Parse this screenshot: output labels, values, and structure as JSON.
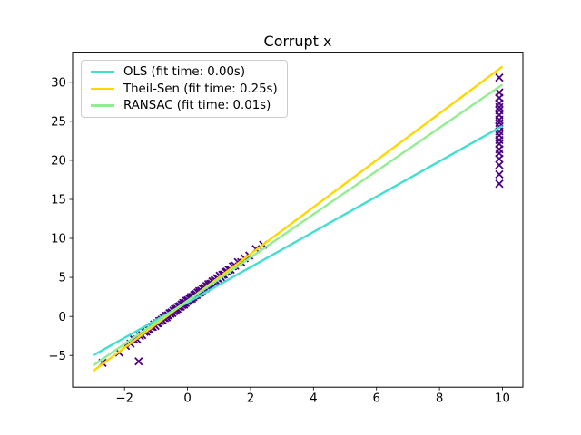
{
  "figure": {
    "background": "#ffffff",
    "spine_color": "#000000",
    "tick_color": "#000000",
    "text_color": "#000000"
  },
  "chart_data": {
    "type": "scatter",
    "title": "Corrupt x",
    "xlabel": "",
    "ylabel": "",
    "xlim": [
      -3.65,
      10.65
    ],
    "ylim": [
      -9.06,
      33.85
    ],
    "xticks": [
      -2,
      0,
      2,
      4,
      6,
      8,
      10
    ],
    "yticks": [
      -5,
      0,
      5,
      10,
      15,
      20,
      25,
      30
    ],
    "grid": false,
    "legend_position": "upper-left",
    "scatter": {
      "name": "samples",
      "marker": "x",
      "color": "#4B0082",
      "inliers": [
        [
          -2.7,
          -5.95
        ],
        [
          -2.17,
          -4.63
        ],
        [
          -1.96,
          -3.78
        ],
        [
          -1.81,
          -3.48
        ],
        [
          -1.7,
          -2.95
        ],
        [
          -1.6,
          -2.95
        ],
        [
          -1.55,
          -5.75
        ],
        [
          -1.51,
          -2.51
        ],
        [
          -1.44,
          -2.4
        ],
        [
          -1.37,
          -1.99
        ],
        [
          -1.31,
          -1.95
        ],
        [
          -1.25,
          -1.7
        ],
        [
          -1.2,
          -1.72
        ],
        [
          -1.15,
          -1.35
        ],
        [
          -1.1,
          -1.35
        ],
        [
          -1.06,
          -1.03
        ],
        [
          -1.02,
          -1.21
        ],
        [
          -0.97,
          -0.89
        ],
        [
          -0.93,
          -0.87
        ],
        [
          -0.9,
          -0.58
        ],
        [
          -0.86,
          -0.6
        ],
        [
          -0.82,
          -0.41
        ],
        [
          -0.79,
          -0.49
        ],
        [
          -0.76,
          -0.18
        ],
        [
          -0.72,
          -0.21
        ],
        [
          -0.69,
          0.08
        ],
        [
          -0.66,
          -0.13
        ],
        [
          -0.63,
          0.13
        ],
        [
          -0.6,
          0.12
        ],
        [
          -0.57,
          0.41
        ],
        [
          -0.54,
          0.36
        ],
        [
          -0.51,
          0.52
        ],
        [
          -0.48,
          0.44
        ],
        [
          -0.45,
          0.75
        ],
        [
          -0.43,
          0.66
        ],
        [
          -0.4,
          0.95
        ],
        [
          -0.37,
          0.74
        ],
        [
          -0.35,
          0.97
        ],
        [
          -0.32,
          0.96
        ],
        [
          -0.29,
          1.25
        ],
        [
          -0.27,
          1.17
        ],
        [
          -0.24,
          1.33
        ],
        [
          -0.21,
          1.25
        ],
        [
          -0.19,
          1.53
        ],
        [
          -0.16,
          1.47
        ],
        [
          -0.14,
          1.73
        ],
        [
          -0.11,
          1.52
        ],
        [
          -0.09,
          1.75
        ],
        [
          -0.06,
          1.74
        ],
        [
          -0.04,
          2.0
        ],
        [
          -0.01,
          1.95
        ],
        [
          0.01,
          2.08
        ],
        [
          0.04,
          2.0
        ],
        [
          0.06,
          2.28
        ],
        [
          0.09,
          2.22
        ],
        [
          0.11,
          2.48
        ],
        [
          0.14,
          2.27
        ],
        [
          0.16,
          2.5
        ],
        [
          0.19,
          2.49
        ],
        [
          0.21,
          2.75
        ],
        [
          0.24,
          2.7
        ],
        [
          0.27,
          2.86
        ],
        [
          0.29,
          2.75
        ],
        [
          0.32,
          3.06
        ],
        [
          0.35,
          3.0
        ],
        [
          0.37,
          3.26
        ],
        [
          0.4,
          3.05
        ],
        [
          0.43,
          3.31
        ],
        [
          0.45,
          3.27
        ],
        [
          0.48,
          3.56
        ],
        [
          0.51,
          3.51
        ],
        [
          0.54,
          3.67
        ],
        [
          0.57,
          3.59
        ],
        [
          0.6,
          3.9
        ],
        [
          0.63,
          3.84
        ],
        [
          0.66,
          4.13
        ],
        [
          0.69,
          3.92
        ],
        [
          0.72,
          4.18
        ],
        [
          0.76,
          4.2
        ],
        [
          0.79,
          4.49
        ],
        [
          0.82,
          4.44
        ],
        [
          0.86,
          4.63
        ],
        [
          0.9,
          4.58
        ],
        [
          0.93,
          4.89
        ],
        [
          0.97,
          4.86
        ],
        [
          1.02,
          5.21
        ],
        [
          1.06,
          5.03
        ],
        [
          1.1,
          5.32
        ],
        [
          1.15,
          5.37
        ],
        [
          1.2,
          5.72
        ],
        [
          1.25,
          5.73
        ],
        [
          1.31,
          5.98
        ],
        [
          1.37,
          5.99
        ],
        [
          1.44,
          6.42
        ],
        [
          1.51,
          6.48
        ],
        [
          1.6,
          6.95
        ],
        [
          1.7,
          6.95
        ],
        [
          1.81,
          7.45
        ],
        [
          1.96,
          7.8
        ],
        [
          2.17,
          8.63
        ],
        [
          2.4,
          9.18
        ]
      ],
      "outliers": [
        [
          9.9,
          30.6
        ],
        [
          9.9,
          28.7
        ],
        [
          9.9,
          28.0
        ],
        [
          9.9,
          27.3
        ],
        [
          9.9,
          26.8
        ],
        [
          9.9,
          26.4
        ],
        [
          9.9,
          25.8
        ],
        [
          9.9,
          25.2
        ],
        [
          9.9,
          24.8
        ],
        [
          9.9,
          24.3
        ],
        [
          9.9,
          23.7
        ],
        [
          9.9,
          23.2
        ],
        [
          9.9,
          22.6
        ],
        [
          9.9,
          22.1
        ],
        [
          9.9,
          21.4
        ],
        [
          9.9,
          20.9
        ],
        [
          9.9,
          20.2
        ],
        [
          9.9,
          19.4
        ],
        [
          9.9,
          18.2
        ],
        [
          9.9,
          17.0
        ]
      ]
    },
    "series": [
      {
        "name": "ols",
        "label": "OLS (fit time: 0.00s)",
        "color": "#40E0D0",
        "x": [
          -3,
          10
        ],
        "y": [
          -5.0,
          24.4
        ]
      },
      {
        "name": "theil-sen",
        "label": "Theil-Sen (fit time: 0.25s)",
        "color": "#FFD700",
        "x": [
          -3,
          10
        ],
        "y": [
          -7.0,
          32.0
        ]
      },
      {
        "name": "ransac",
        "label": "RANSAC (fit time: 0.01s)",
        "color": "#90EE90",
        "x": [
          -3,
          10
        ],
        "y": [
          -6.3,
          29.7
        ]
      }
    ]
  }
}
